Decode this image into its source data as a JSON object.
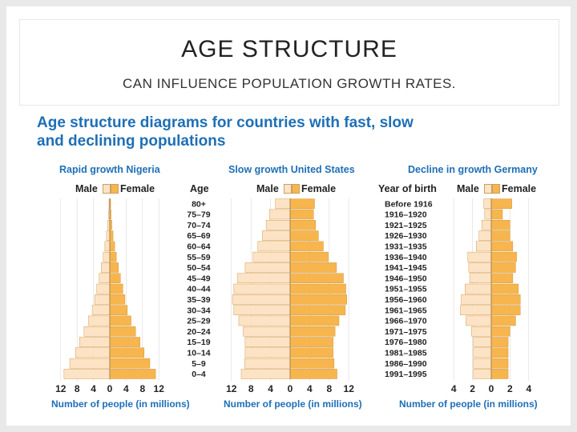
{
  "slide": {
    "title": "AGE STRUCTURE",
    "subtitle": "CAN INFLUENCE POPULATION GROWTH RATES."
  },
  "figure": {
    "title_line1": "Age structure diagrams for countries with fast, slow",
    "title_line2": "and declining populations",
    "age_header": "Age",
    "birth_header": "Year of birth",
    "male_label": "Male",
    "female_label": "Female",
    "colors": {
      "male": "#fde3c6",
      "female": "#f7b54e",
      "outline": "#c98a2e",
      "accent": "#1e6fb6"
    }
  },
  "chart_data": [
    {
      "type": "bar",
      "title": "Rapid growth Nigeria",
      "xlabel": "Number of people (in millions)",
      "ticks": [
        "12",
        "8",
        "4",
        "0",
        "4",
        "8",
        "12"
      ],
      "categories": [
        "80+",
        "75–79",
        "70–74",
        "65–69",
        "60–64",
        "55–59",
        "50–54",
        "45–49",
        "40–44",
        "35–39",
        "30–34",
        "25–29",
        "20–24",
        "15–19",
        "10–14",
        "5–9",
        "0–4"
      ],
      "series": [
        {
          "name": "Male",
          "values": [
            0.2,
            0.3,
            0.5,
            0.8,
            1.2,
            1.6,
            2.1,
            2.6,
            3.2,
            3.7,
            4.3,
            5.2,
            6.3,
            7.4,
            8.4,
            9.8,
            11.2
          ]
        },
        {
          "name": "Female",
          "values": [
            0.2,
            0.3,
            0.5,
            0.8,
            1.2,
            1.6,
            2.1,
            2.6,
            3.2,
            3.7,
            4.3,
            5.2,
            6.3,
            7.4,
            8.4,
            9.8,
            11.2
          ]
        }
      ],
      "xlim": [
        -12,
        12
      ]
    },
    {
      "type": "bar",
      "title": "Slow growth United States",
      "xlabel": "Number of people (in millions)",
      "ticks": [
        "12",
        "8",
        "4",
        "0",
        "4",
        "8",
        "12"
      ],
      "categories": [
        "80+",
        "75–79",
        "70–74",
        "65–69",
        "60–64",
        "55–59",
        "50–54",
        "45–49",
        "40–44",
        "35–39",
        "30–34",
        "25–29",
        "20–24",
        "15–19",
        "10–14",
        "5–9",
        "0–4"
      ],
      "series": [
        {
          "name": "Male",
          "values": [
            3.0,
            4.2,
            4.9,
            5.7,
            6.6,
            7.6,
            9.2,
            10.8,
            11.5,
            11.8,
            11.5,
            10.5,
            9.6,
            9.2,
            9.2,
            9.3,
            10.0
          ]
        },
        {
          "name": "Female",
          "values": [
            5.0,
            4.8,
            5.2,
            5.8,
            6.8,
            7.8,
            9.5,
            10.9,
            11.4,
            11.6,
            11.3,
            10.0,
            9.2,
            8.8,
            8.8,
            9.0,
            9.6
          ]
        }
      ],
      "xlim": [
        -12,
        12
      ]
    },
    {
      "type": "bar",
      "title": "Decline in growth Germany",
      "xlabel": "Number of people (in millions)",
      "ticks": [
        "4",
        "2",
        "0",
        "2",
        "4"
      ],
      "categories": [
        "Before 1916",
        "1916–1920",
        "1921–1925",
        "1926–1930",
        "1931–1935",
        "1936–1940",
        "1941–1945",
        "1946–1950",
        "1951–1955",
        "1956–1960",
        "1961–1965",
        "1966–1970",
        "1971–1975",
        "1976–1980",
        "1981–1985",
        "1986–1990",
        "1991–1995"
      ],
      "series": [
        {
          "name": "Male",
          "values": [
            0.8,
            0.7,
            1.0,
            1.3,
            1.6,
            2.5,
            2.4,
            2.3,
            2.8,
            3.2,
            3.3,
            2.7,
            2.1,
            1.9,
            1.9,
            1.9,
            1.9
          ]
        },
        {
          "name": "Female",
          "values": [
            2.2,
            1.2,
            2.0,
            2.0,
            2.3,
            2.7,
            2.6,
            2.3,
            2.9,
            3.1,
            3.1,
            2.6,
            2.0,
            1.8,
            1.8,
            1.8,
            1.8
          ]
        }
      ],
      "xlim": [
        -4,
        4
      ]
    }
  ]
}
